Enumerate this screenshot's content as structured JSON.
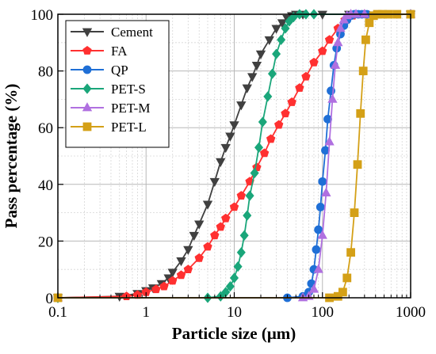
{
  "chart_data": {
    "type": "line",
    "xlabel": "Particle size (μm)",
    "ylabel": "Pass percentage (%)",
    "xscale": "log",
    "xlim": [
      0.1,
      1000
    ],
    "ylim": [
      0,
      100
    ],
    "x_ticks": [
      "0.1",
      "1",
      "10",
      "100",
      "1000"
    ],
    "y_ticks": [
      "0",
      "20",
      "40",
      "60",
      "80",
      "100"
    ],
    "grid": true,
    "legend_position": "top-left",
    "series": [
      {
        "name": "Cement",
        "color": "#404040",
        "marker": "triangle-down",
        "x": [
          0.1,
          0.5,
          0.8,
          1.0,
          1.2,
          1.5,
          1.8,
          2.0,
          2.5,
          3.0,
          3.5,
          4.0,
          5.0,
          6.0,
          7.0,
          8.0,
          9.0,
          10.0,
          12.0,
          14.0,
          16.0,
          18.0,
          20.0,
          25.0,
          30.0,
          35.0,
          40.0,
          45.0,
          50.0,
          60.0,
          100.0,
          200.0,
          1000.0
        ],
        "y": [
          0,
          0.5,
          1.5,
          2.5,
          3.5,
          5,
          7,
          9,
          13,
          17,
          22,
          26,
          33,
          41,
          48,
          53,
          57,
          61,
          68,
          74,
          78,
          82,
          86,
          91,
          95,
          97,
          98.5,
          99.5,
          100,
          100,
          100,
          100,
          100
        ]
      },
      {
        "name": "FA",
        "color": "#ff3030",
        "marker": "pentagon",
        "x": [
          0.1,
          0.6,
          0.8,
          1.0,
          1.3,
          1.6,
          2.0,
          2.5,
          3.0,
          4.0,
          5.0,
          6.0,
          7.0,
          8.0,
          10.0,
          12.0,
          15.0,
          18.0,
          22.0,
          26.0,
          32.0,
          38.0,
          45.0,
          55.0,
          65.0,
          80.0,
          100.0,
          120.0,
          150.0,
          180.0,
          220.0,
          300.0,
          1000.0
        ],
        "y": [
          0,
          0.5,
          1,
          2,
          3,
          4,
          6,
          8,
          10,
          14,
          18,
          22,
          25,
          28,
          32,
          36,
          41,
          46,
          51,
          56,
          61,
          65,
          69,
          74,
          78,
          83,
          87,
          91,
          95,
          98,
          99.5,
          100,
          100
        ]
      },
      {
        "name": "QP",
        "color": "#1f6fd6",
        "marker": "circle",
        "x": [
          0.1,
          40.0,
          60.0,
          70.0,
          75.0,
          80.0,
          85.0,
          90.0,
          95.0,
          100.0,
          108.0,
          115.0,
          125.0,
          135.0,
          145.0,
          160.0,
          175.0,
          190.0,
          210.0,
          230.0,
          255.0,
          280.0,
          320.0,
          1000.0
        ],
        "y": [
          0,
          0,
          0.5,
          2,
          5,
          10,
          17,
          24,
          32,
          41,
          52,
          63,
          73,
          82,
          88,
          93,
          96,
          98,
          99.5,
          100,
          100,
          100,
          100,
          100
        ]
      },
      {
        "name": "PET-S",
        "color": "#1aa67a",
        "marker": "diamond",
        "x": [
          0.1,
          5.0,
          7.0,
          8.0,
          9.0,
          10.0,
          11.0,
          12.0,
          13.0,
          14.0,
          15.0,
          17.0,
          19.0,
          21.0,
          24.0,
          27.0,
          30.0,
          34.0,
          38.0,
          42.0,
          47.0,
          55.0,
          65.0,
          80.0,
          1000.0
        ],
        "y": [
          0,
          0,
          0.5,
          2,
          4,
          7,
          11,
          16,
          22,
          29,
          36,
          44,
          53,
          62,
          71,
          79,
          86,
          91,
          95,
          97.5,
          99,
          100,
          100,
          100,
          100
        ]
      },
      {
        "name": "PET-M",
        "color": "#b070e0",
        "marker": "triangle-up",
        "x": [
          0.1,
          60.0,
          70.0,
          80.0,
          90.0,
          100.0,
          110.0,
          120.0,
          130.0,
          140.0,
          150.0,
          160.0,
          175.0,
          190.0,
          210.0,
          240.0,
          300.0,
          1000.0
        ],
        "y": [
          0,
          0,
          0.5,
          3,
          10,
          22,
          37,
          55,
          70,
          82,
          90,
          95,
          98,
          99.5,
          100,
          100,
          100,
          100
        ]
      },
      {
        "name": "PET-L",
        "color": "#d4a017",
        "marker": "square",
        "x": [
          0.1,
          120.0,
          150.0,
          170.0,
          190.0,
          210.0,
          230.0,
          250.0,
          270.0,
          290.0,
          310.0,
          340.0,
          380.0,
          420.0,
          480.0,
          560.0,
          700.0,
          1000.0
        ],
        "y": [
          0,
          0,
          0.5,
          2,
          7,
          16,
          30,
          47,
          65,
          80,
          91,
          97,
          99.5,
          100,
          100,
          100,
          100,
          100
        ]
      }
    ]
  }
}
